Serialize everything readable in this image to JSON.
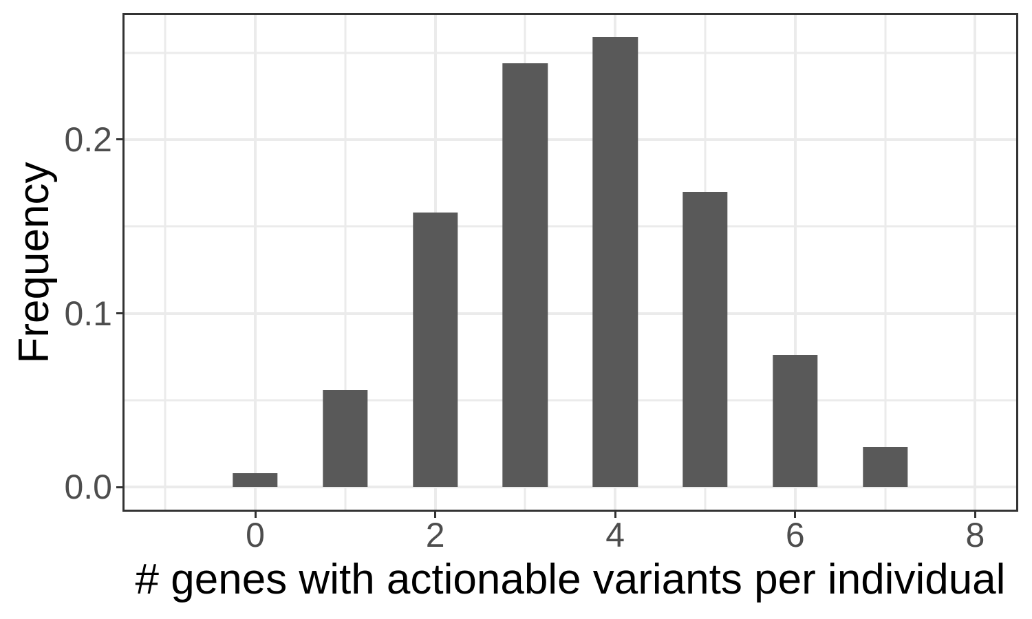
{
  "chart_data": {
    "type": "bar",
    "title": "",
    "xlabel": "# genes with actionable variants per individual",
    "ylabel": "Frequency",
    "x": [
      0,
      1,
      2,
      3,
      4,
      5,
      6,
      7
    ],
    "values": [
      0.008,
      0.056,
      0.158,
      0.244,
      0.259,
      0.17,
      0.076,
      0.023
    ],
    "bar_width": 0.5,
    "xlim": [
      -1.453,
      8.456
    ],
    "ylim": [
      -0.0129,
      0.2716
    ],
    "x_ticks": [
      {
        "value": 0,
        "label": "0"
      },
      {
        "value": 2,
        "label": "2"
      },
      {
        "value": 4,
        "label": "4"
      },
      {
        "value": 6,
        "label": "6"
      },
      {
        "value": 8,
        "label": "8"
      }
    ],
    "y_ticks": [
      {
        "value": 0.0,
        "label": "0.0"
      },
      {
        "value": 0.1,
        "label": "0.1"
      },
      {
        "value": 0.2,
        "label": "0.2"
      }
    ],
    "x_minor_gridlines": [
      -1,
      1,
      3,
      5,
      7
    ],
    "y_minor_gridlines": [
      0.05,
      0.15,
      0.25
    ],
    "grid": true,
    "legend": "none",
    "colors": {
      "bar": "#595959",
      "grid_major": "#ebebeb",
      "grid_minor": "#ebebeb",
      "panel_border": "#333333",
      "tick_mark": "#333333",
      "tick_label": "#4d4d4d",
      "axis_title": "#000000",
      "background": "#ffffff"
    }
  }
}
